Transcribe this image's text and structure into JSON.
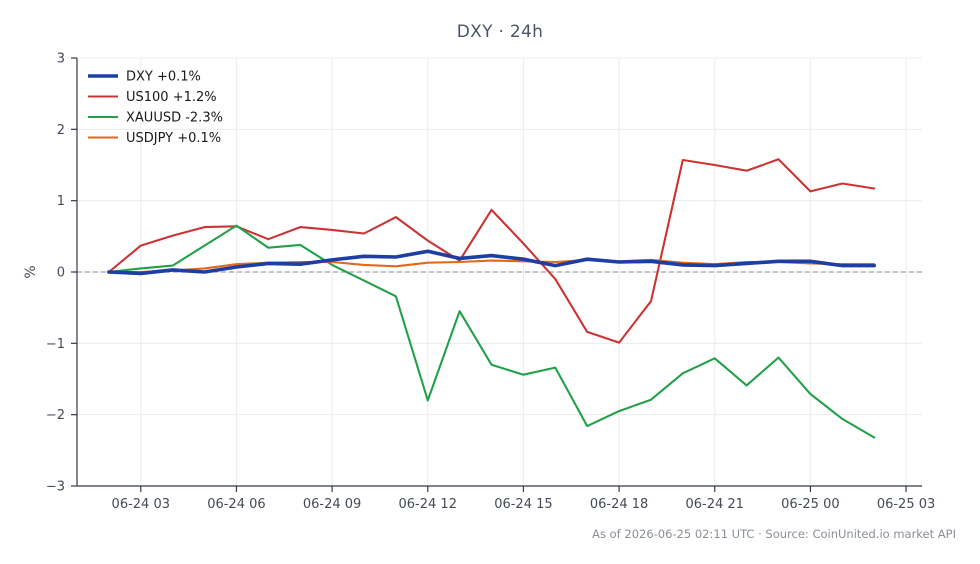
{
  "chart_data": {
    "type": "line",
    "title": "DXY · 24h",
    "xlabel": "",
    "ylabel": "%",
    "ylim": [
      -3,
      3
    ],
    "yticks": [
      3,
      2,
      1,
      0,
      -1,
      -2,
      -3
    ],
    "ytick_labels": [
      "3",
      "2",
      "1",
      "0",
      "−1",
      "−2",
      "−3"
    ],
    "xlim": [
      "2026-06-24 01:00",
      "2026-06-25 03:30"
    ],
    "xticks": [
      "2026-06-24 03:00",
      "2026-06-24 06:00",
      "2026-06-24 09:00",
      "2026-06-24 12:00",
      "2026-06-24 15:00",
      "2026-06-24 18:00",
      "2026-06-24 21:00",
      "2026-06-25 00:00",
      "2026-06-25 03:00"
    ],
    "xtick_labels": [
      "06-24 03",
      "06-24 06",
      "06-24 09",
      "06-24 12",
      "06-24 15",
      "06-24 18",
      "06-24 21",
      "06-25 00",
      "06-25 03"
    ],
    "grid": true,
    "legend_position": "top-left",
    "zero_line": true,
    "x": [
      "2026-06-24 02:00",
      "2026-06-24 03:00",
      "2026-06-24 04:00",
      "2026-06-24 05:00",
      "2026-06-24 06:00",
      "2026-06-24 07:00",
      "2026-06-24 08:00",
      "2026-06-24 09:00",
      "2026-06-24 10:00",
      "2026-06-24 11:00",
      "2026-06-24 12:00",
      "2026-06-24 13:00",
      "2026-06-24 14:00",
      "2026-06-24 15:00",
      "2026-06-24 16:00",
      "2026-06-24 17:00",
      "2026-06-24 18:00",
      "2026-06-24 19:00",
      "2026-06-24 20:00",
      "2026-06-24 21:00",
      "2026-06-24 22:00",
      "2026-06-24 23:00",
      "2026-06-25 00:00",
      "2026-06-25 01:00",
      "2026-06-25 02:00"
    ],
    "series": [
      {
        "name": "US100 +1.2%",
        "color": "#cc3333",
        "emphasis": false,
        "values": [
          0.0,
          0.37,
          0.51,
          0.63,
          0.64,
          0.46,
          0.63,
          0.59,
          0.54,
          0.77,
          0.44,
          0.16,
          0.87,
          0.4,
          -0.1,
          -0.84,
          -0.99,
          -0.41,
          1.57,
          1.5,
          1.42,
          1.58,
          1.13,
          1.24,
          1.17
        ]
      },
      {
        "name": "XAUUSD -2.3%",
        "color": "#22a04a",
        "emphasis": false,
        "values": [
          0.0,
          0.05,
          0.09,
          0.37,
          0.65,
          0.34,
          0.38,
          0.1,
          -0.12,
          -0.34,
          -1.8,
          -0.55,
          -1.3,
          -1.44,
          -1.34,
          -2.16,
          -1.95,
          -1.79,
          -1.42,
          -1.21,
          -1.59,
          -1.2,
          -1.71,
          -2.06,
          -2.32
        ]
      },
      {
        "name": "USDJPY +0.1%",
        "color": "#e06a1c",
        "emphasis": false,
        "values": [
          0.0,
          0.0,
          0.02,
          0.05,
          0.11,
          0.13,
          0.14,
          0.14,
          0.1,
          0.08,
          0.13,
          0.14,
          0.16,
          0.15,
          0.14,
          0.17,
          0.15,
          0.17,
          0.13,
          0.11,
          0.14,
          0.14,
          0.12,
          0.11,
          0.11
        ]
      },
      {
        "name": "DXY +0.1%",
        "color": "#1f3ea3",
        "emphasis": true,
        "values": [
          0.0,
          -0.02,
          0.03,
          0.0,
          0.07,
          0.12,
          0.11,
          0.17,
          0.22,
          0.21,
          0.29,
          0.19,
          0.23,
          0.18,
          0.09,
          0.18,
          0.14,
          0.15,
          0.1,
          0.09,
          0.12,
          0.15,
          0.15,
          0.09,
          0.09
        ]
      }
    ],
    "legend_order": [
      "DXY +0.1%",
      "US100 +1.2%",
      "XAUUSD -2.3%",
      "USDJPY +0.1%"
    ]
  },
  "footer": "As of 2026-06-25 02:11 UTC · Source: CoinUnited.io market API"
}
